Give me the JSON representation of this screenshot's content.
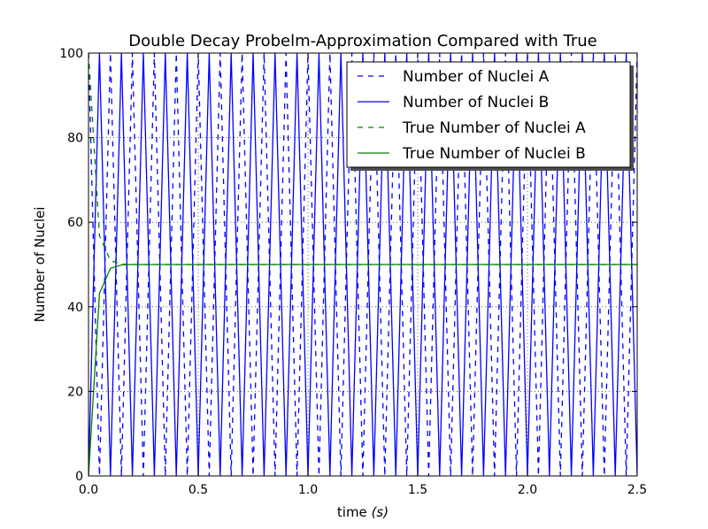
{
  "chart_data": {
    "type": "line",
    "title": "Double Decay Probelm-Approximation Compared with True",
    "xlabel": "time ",
    "xlabel_unit": "(s)",
    "ylabel": "Number of Nuclei",
    "xlim": [
      0.0,
      2.5
    ],
    "ylim": [
      0,
      100
    ],
    "x_ticks": [
      "0.0",
      "0.5",
      "1.0",
      "1.5",
      "2.0",
      "2.5"
    ],
    "y_ticks": [
      "0",
      "20",
      "40",
      "60",
      "80",
      "100"
    ],
    "grid": true,
    "legend_position": "top-right",
    "time_step": 0.05,
    "series": [
      {
        "name": "Number of Nuclei A",
        "color": "#0000ff",
        "dash": "dashed",
        "description": "alternates 100 / 0 every time step (oscillating approximation)",
        "x": [
          0.0,
          0.05,
          0.1,
          0.15,
          0.2,
          0.25,
          0.3,
          0.35,
          0.4,
          0.45,
          0.5,
          0.55,
          0.6,
          0.65,
          0.7,
          0.75,
          0.8,
          0.85,
          0.9,
          0.95,
          1.0,
          1.05,
          1.1,
          1.15,
          1.2,
          1.25,
          1.3,
          1.35,
          1.4,
          1.45,
          1.5,
          1.55,
          1.6,
          1.65,
          1.7,
          1.75,
          1.8,
          1.85,
          1.9,
          1.95,
          2.0,
          2.05,
          2.1,
          2.15,
          2.2,
          2.25,
          2.3,
          2.35,
          2.4,
          2.45,
          2.5
        ],
        "y": [
          100,
          0,
          100,
          0,
          100,
          0,
          100,
          0,
          100,
          0,
          100,
          0,
          100,
          0,
          100,
          0,
          100,
          0,
          100,
          0,
          100,
          0,
          100,
          0,
          100,
          0,
          100,
          0,
          100,
          0,
          100,
          0,
          100,
          0,
          100,
          0,
          100,
          0,
          100,
          0,
          100,
          0,
          100,
          0,
          100,
          0,
          100,
          0,
          100,
          0,
          100
        ]
      },
      {
        "name": "Number of Nuclei B",
        "color": "#0000ff",
        "dash": "solid",
        "x": [
          0.0,
          0.05,
          0.1,
          0.15,
          0.2,
          0.25,
          0.3,
          0.35,
          0.4,
          0.45,
          0.5,
          0.55,
          0.6,
          0.65,
          0.7,
          0.75,
          0.8,
          0.85,
          0.9,
          0.95,
          1.0,
          1.05,
          1.1,
          1.15,
          1.2,
          1.25,
          1.3,
          1.35,
          1.4,
          1.45,
          1.5,
          1.55,
          1.6,
          1.65,
          1.7,
          1.75,
          1.8,
          1.85,
          1.9,
          1.95,
          2.0,
          2.05,
          2.1,
          2.15,
          2.2,
          2.25,
          2.3,
          2.35,
          2.4,
          2.45,
          2.5
        ],
        "y": [
          0,
          100,
          0,
          100,
          0,
          100,
          0,
          100,
          0,
          100,
          0,
          100,
          0,
          100,
          0,
          100,
          0,
          100,
          0,
          100,
          0,
          100,
          0,
          100,
          0,
          100,
          0,
          100,
          0,
          100,
          0,
          100,
          0,
          100,
          0,
          100,
          0,
          100,
          0,
          100,
          0,
          100,
          0,
          100,
          0,
          100,
          0,
          100,
          0,
          100,
          0
        ]
      },
      {
        "name": "True Number of Nuclei A",
        "color": "#008000",
        "dash": "dashed",
        "x": [
          0.0,
          0.05,
          0.1,
          0.15,
          0.2,
          0.25,
          0.3,
          0.35,
          0.4,
          0.45,
          0.5,
          0.6,
          0.7,
          0.8,
          0.9,
          1.0,
          1.25,
          1.5,
          1.75,
          2.0,
          2.25,
          2.5
        ],
        "y": [
          100,
          56.8,
          50.9,
          50.1,
          50.0,
          50.0,
          50.0,
          50.0,
          50.0,
          50.0,
          50.0,
          50.0,
          50.0,
          50.0,
          50.0,
          50.0,
          50.0,
          50.0,
          50.0,
          50.0,
          50.0,
          50.0
        ]
      },
      {
        "name": "True Number of Nuclei B",
        "color": "#008000",
        "dash": "solid",
        "x": [
          0.0,
          0.05,
          0.1,
          0.15,
          0.2,
          0.25,
          0.3,
          0.35,
          0.4,
          0.45,
          0.5,
          0.6,
          0.7,
          0.8,
          0.9,
          1.0,
          1.25,
          1.5,
          1.75,
          2.0,
          2.25,
          2.5
        ],
        "y": [
          0,
          43.2,
          49.1,
          49.9,
          50.0,
          50.0,
          50.0,
          50.0,
          50.0,
          50.0,
          50.0,
          50.0,
          50.0,
          50.0,
          50.0,
          50.0,
          50.0,
          50.0,
          50.0,
          50.0,
          50.0,
          50.0
        ]
      }
    ]
  }
}
